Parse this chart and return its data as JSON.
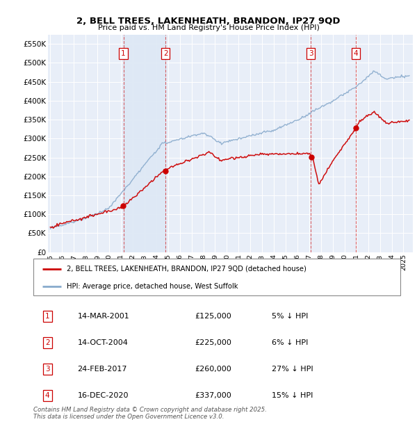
{
  "title": "2, BELL TREES, LAKENHEATH, BRANDON, IP27 9QD",
  "subtitle": "Price paid vs. HM Land Registry's House Price Index (HPI)",
  "ylim": [
    0,
    575000
  ],
  "yticks": [
    0,
    50000,
    100000,
    150000,
    200000,
    250000,
    300000,
    350000,
    400000,
    450000,
    500000,
    550000
  ],
  "ytick_labels": [
    "£0",
    "£50K",
    "£100K",
    "£150K",
    "£200K",
    "£250K",
    "£300K",
    "£350K",
    "£400K",
    "£450K",
    "£500K",
    "£550K"
  ],
  "xlim_start": 1994.8,
  "xlim_end": 2025.8,
  "background_color": "#ffffff",
  "plot_bg_color": "#e8eef8",
  "grid_color": "#ffffff",
  "transactions": [
    {
      "num": 1,
      "date": "14-MAR-2001",
      "price": 125000,
      "pct": "5%",
      "x": 2001.21
    },
    {
      "num": 2,
      "date": "14-OCT-2004",
      "price": 225000,
      "pct": "6%",
      "x": 2004.79
    },
    {
      "num": 3,
      "date": "24-FEB-2017",
      "price": 260000,
      "pct": "27%",
      "x": 2017.13
    },
    {
      "num": 4,
      "date": "16-DEC-2020",
      "price": 337000,
      "pct": "15%",
      "x": 2020.96
    }
  ],
  "legend_line1": "2, BELL TREES, LAKENHEATH, BRANDON, IP27 9QD (detached house)",
  "legend_line2": "HPI: Average price, detached house, West Suffolk",
  "footer": "Contains HM Land Registry data © Crown copyright and database right 2025.\nThis data is licensed under the Open Government Licence v3.0.",
  "red_line_color": "#cc0000",
  "blue_line_color": "#88aacc",
  "shade_color": "#dde8f5"
}
